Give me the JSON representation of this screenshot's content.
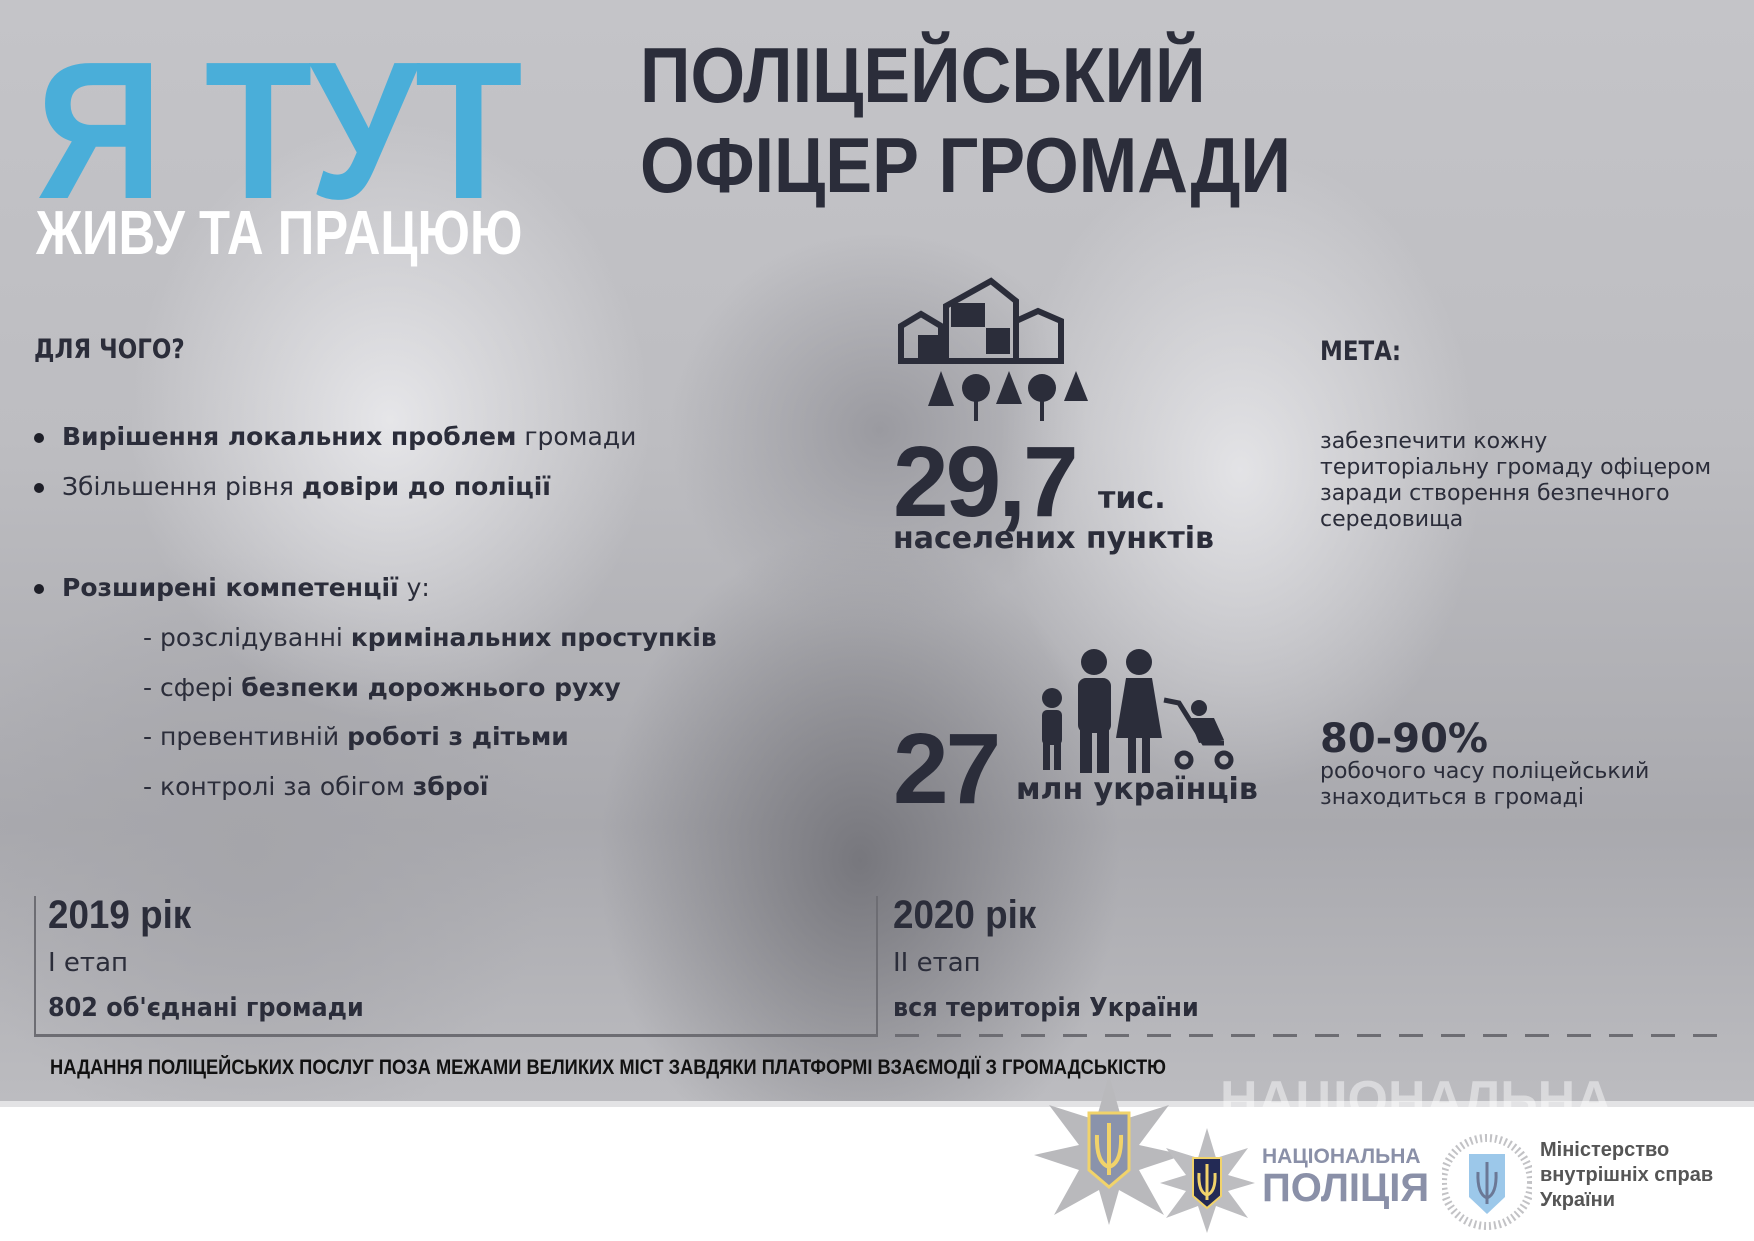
{
  "header": {
    "slogan": "Я ТУТ",
    "subslogan": "ЖИВУ ТА ПРАЦЮЮ",
    "title_line1": "ПОЛІЦЕЙСЬКИЙ",
    "title_line2": "ОФІЦЕР ГРОМАДИ"
  },
  "why": {
    "heading": "ДЛЯ ЧОГО?",
    "items": [
      {
        "bold": "Вирішення локальних проблем",
        "rest": " громади"
      },
      {
        "pre": "Збільшення рівня ",
        "bold": "довіри до поліції"
      }
    ],
    "competence": {
      "bold": "Розширені компетенції",
      "rest": " у:",
      "sub": [
        {
          "pre": "- розслідуванні ",
          "bold": "кримінальних проступків"
        },
        {
          "pre": "- сфері ",
          "bold": "безпеки дорожнього руху"
        },
        {
          "pre": "- превентивній ",
          "bold": "роботі з дітьми"
        },
        {
          "pre": "- контролі за обігом ",
          "bold": "зброї"
        }
      ]
    }
  },
  "stats": {
    "settlements": {
      "value": "29,7",
      "unit": "тис.",
      "label": "населених пунктів",
      "icon": "village-icon"
    },
    "people": {
      "value": "27",
      "label": "млн українців",
      "icon": "family-icon"
    }
  },
  "goal": {
    "heading": "МЕТА:",
    "text_lines": [
      "забезпечити кожну",
      "територіальну громаду офіцером",
      "заради створення безпечного",
      "середовища"
    ],
    "percent": "80-90%",
    "percent_lines": [
      "робочого часу поліцейський",
      "знаходиться в громаді"
    ]
  },
  "timeline": [
    {
      "year": "2019 рік",
      "stage": "І етап",
      "scope": "802 об'єднані громади"
    },
    {
      "year": "2020 рік",
      "stage": "ІІ етап",
      "scope": "вся територія України"
    }
  ],
  "banner": "НАДАННЯ ПОЛІЦЕЙСЬКИХ ПОСЛУГ ПОЗА МЕЖАМИ ВЕЛИКИХ МІСТ ЗАВДЯКИ ПЛАТФОРМІ ВЗАЄМОДІЇ З ГРОМАДСЬКІСТЮ",
  "logos": {
    "watermark": "НАЦІОНАЛЬНА",
    "police_line1": "НАЦІОНАЛЬНА",
    "police_line2": "ПОЛІЦІЯ",
    "ministry_lines": [
      "Міністерство",
      "внутрішніх справ",
      "України"
    ]
  },
  "colors": {
    "accent": "#4aaed9",
    "text": "#2b2d3a",
    "gold": "#f1d36a",
    "navy": "#232a55"
  }
}
